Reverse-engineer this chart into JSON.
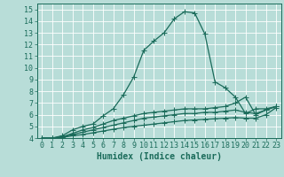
{
  "xlabel": "Humidex (Indice chaleur)",
  "ylabel": "",
  "bg_color": "#b8ddd8",
  "line_color": "#1a6b5a",
  "grid_color": "#ffffff",
  "xlim": [
    -0.5,
    23.5
  ],
  "ylim": [
    4,
    15.5
  ],
  "xticks": [
    0,
    1,
    2,
    3,
    4,
    5,
    6,
    7,
    8,
    9,
    10,
    11,
    12,
    13,
    14,
    15,
    16,
    17,
    18,
    19,
    20,
    21,
    22,
    23
  ],
  "yticks": [
    4,
    5,
    6,
    7,
    8,
    9,
    10,
    11,
    12,
    13,
    14,
    15
  ],
  "series": [
    {
      "x": [
        0,
        1,
        2,
        3,
        4,
        5,
        6,
        7,
        8,
        9,
        10,
        11,
        12,
        13,
        14,
        15,
        16,
        17,
        18,
        19,
        20,
        21,
        22,
        23
      ],
      "y": [
        4.0,
        4.0,
        4.2,
        4.7,
        5.0,
        5.2,
        5.9,
        6.5,
        7.7,
        9.2,
        11.5,
        12.3,
        13.0,
        14.2,
        14.8,
        14.7,
        12.9,
        8.8,
        8.3,
        7.5,
        6.1,
        6.5,
        6.5,
        6.7
      ]
    },
    {
      "x": [
        0,
        1,
        2,
        3,
        4,
        5,
        6,
        7,
        8,
        9,
        10,
        11,
        12,
        13,
        14,
        15,
        16,
        17,
        18,
        19,
        20,
        21,
        22,
        23
      ],
      "y": [
        4.0,
        4.0,
        4.1,
        4.4,
        4.7,
        4.9,
        5.2,
        5.5,
        5.7,
        5.9,
        6.1,
        6.2,
        6.3,
        6.4,
        6.5,
        6.5,
        6.5,
        6.6,
        6.7,
        7.0,
        7.5,
        6.0,
        6.4,
        6.7
      ]
    },
    {
      "x": [
        0,
        1,
        2,
        3,
        4,
        5,
        6,
        7,
        8,
        9,
        10,
        11,
        12,
        13,
        14,
        15,
        16,
        17,
        18,
        19,
        20,
        21,
        22,
        23
      ],
      "y": [
        4.0,
        4.0,
        4.1,
        4.3,
        4.5,
        4.7,
        4.9,
        5.1,
        5.3,
        5.5,
        5.7,
        5.8,
        5.9,
        6.0,
        6.1,
        6.1,
        6.2,
        6.2,
        6.3,
        6.4,
        6.2,
        6.1,
        6.4,
        6.7
      ]
    },
    {
      "x": [
        0,
        1,
        2,
        3,
        4,
        5,
        6,
        7,
        8,
        9,
        10,
        11,
        12,
        13,
        14,
        15,
        16,
        17,
        18,
        19,
        20,
        21,
        22,
        23
      ],
      "y": [
        4.0,
        4.0,
        4.05,
        4.2,
        4.3,
        4.45,
        4.6,
        4.75,
        4.9,
        5.0,
        5.1,
        5.2,
        5.3,
        5.4,
        5.5,
        5.55,
        5.6,
        5.65,
        5.7,
        5.75,
        5.7,
        5.7,
        6.0,
        6.6
      ]
    }
  ],
  "marker": "+",
  "marker_size": 4,
  "line_width": 0.9,
  "xlabel_fontsize": 7,
  "tick_fontsize": 6
}
